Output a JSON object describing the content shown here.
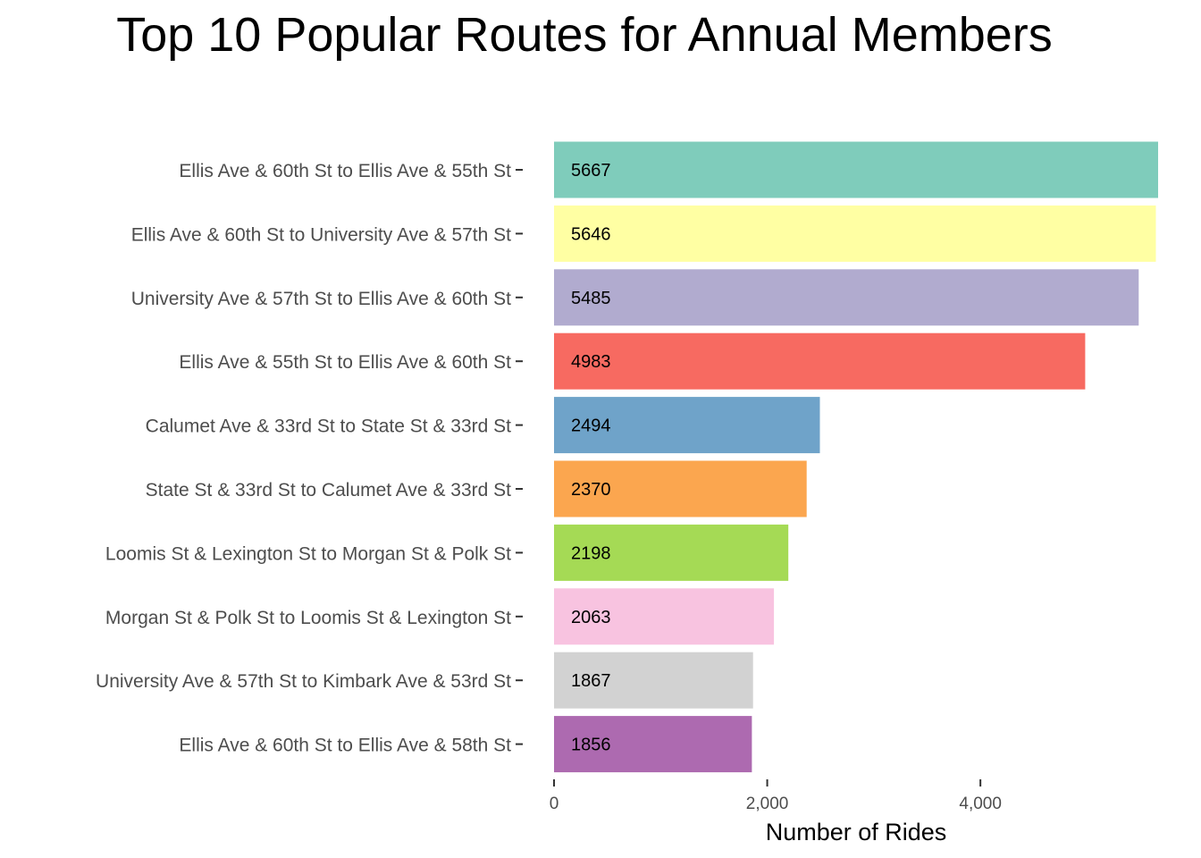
{
  "chart_data": {
    "type": "bar",
    "orientation": "horizontal",
    "title": "Top 10 Popular Routes for Annual Members",
    "xlabel": "Number of Rides",
    "ylabel": "",
    "categories": [
      "Ellis Ave & 60th St to Ellis Ave & 55th St",
      "Ellis Ave & 60th St to University Ave & 57th St",
      "University Ave & 57th St to Ellis Ave & 60th St",
      "Ellis Ave & 55th St to Ellis Ave & 60th St",
      "Calumet Ave & 33rd St to State St & 33rd St",
      "State St & 33rd St to Calumet Ave & 33rd St",
      "Loomis St & Lexington St to Morgan St & Polk St",
      "Morgan St & Polk St to Loomis St & Lexington St",
      "University Ave & 57th St to Kimbark Ave & 53rd St",
      "Ellis Ave & 60th St to Ellis Ave & 58th St"
    ],
    "values": [
      5667,
      5646,
      5485,
      4983,
      2494,
      2370,
      2198,
      2063,
      1867,
      1856
    ],
    "data_labels": [
      "5667",
      "5646",
      "5485",
      "4983",
      "2494",
      "2370",
      "2198",
      "2063",
      "1867",
      "1856"
    ],
    "colors": [
      "#7fccbb",
      "#ffffa3",
      "#b1abcf",
      "#f76a61",
      "#6fa3c9",
      "#fba64f",
      "#a5da55",
      "#f8c3e0",
      "#d2d2d2",
      "#ad6ab0"
    ],
    "xlim": [
      0,
      5667
    ],
    "xticks": [
      0,
      2000,
      4000
    ],
    "xtick_labels": [
      "0",
      "2,000",
      "4,000"
    ],
    "grid": false,
    "legend": "none"
  }
}
